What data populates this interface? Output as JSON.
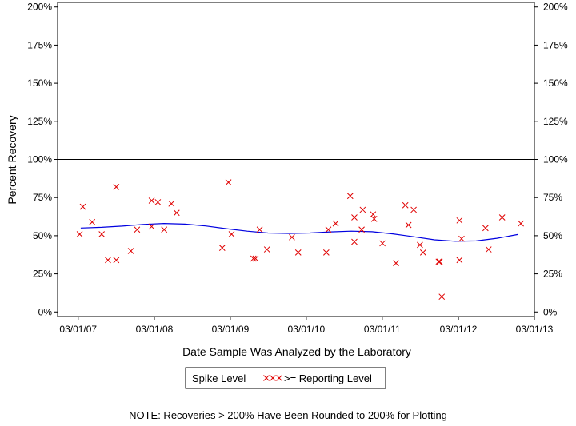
{
  "chart_data": {
    "type": "scatter",
    "xlabel": "Date Sample Was Analyzed by the Laboratory",
    "ylabel": "Percent Recovery",
    "note": "NOTE: Recoveries > 200% Have Been Rounded to 200% for Plotting",
    "x_ticks": [
      "03/01/07",
      "03/01/08",
      "03/01/09",
      "03/01/10",
      "03/01/11",
      "03/01/12",
      "03/01/13"
    ],
    "y_ticks": [
      "0%",
      "25%",
      "50%",
      "75%",
      "100%",
      "125%",
      "150%",
      "175%",
      "200%"
    ],
    "xlim": [
      "2006-11-22",
      "2013-03-01"
    ],
    "ylim": [
      -3,
      203
    ],
    "reference_line": 100,
    "legend": {
      "placement": "bottom-center",
      "items": [
        {
          "label": "Spike Level",
          "symbol": "none"
        },
        {
          "label": ">= Reporting Level",
          "symbol": "xxx"
        }
      ]
    },
    "colors": {
      "points": "#e00000",
      "trend": "#0000e0",
      "reference": "#000000"
    },
    "series": [
      {
        "name": ">= Reporting Level",
        "points": [
          {
            "x": "2007-03-08",
            "y": 51
          },
          {
            "x": "2007-03-23",
            "y": 69
          },
          {
            "x": "2007-05-07",
            "y": 59
          },
          {
            "x": "2007-06-22",
            "y": 51
          },
          {
            "x": "2007-07-22",
            "y": 34
          },
          {
            "x": "2007-08-31",
            "y": 82
          },
          {
            "x": "2007-08-31",
            "y": 34
          },
          {
            "x": "2007-11-09",
            "y": 40
          },
          {
            "x": "2007-12-09",
            "y": 54
          },
          {
            "x": "2008-02-17",
            "y": 56
          },
          {
            "x": "2008-02-17",
            "y": 73
          },
          {
            "x": "2008-03-18",
            "y": 72
          },
          {
            "x": "2008-04-17",
            "y": 54
          },
          {
            "x": "2008-05-22",
            "y": 71
          },
          {
            "x": "2008-06-16",
            "y": 65
          },
          {
            "x": "2009-01-21",
            "y": 42
          },
          {
            "x": "2009-02-20",
            "y": 85
          },
          {
            "x": "2009-03-07",
            "y": 51
          },
          {
            "x": "2009-06-20",
            "y": 35
          },
          {
            "x": "2009-06-30",
            "y": 35
          },
          {
            "x": "2009-07-20",
            "y": 54
          },
          {
            "x": "2009-08-24",
            "y": 41
          },
          {
            "x": "2009-12-22",
            "y": 49
          },
          {
            "x": "2010-01-21",
            "y": 39
          },
          {
            "x": "2010-06-05",
            "y": 39
          },
          {
            "x": "2010-06-15",
            "y": 54
          },
          {
            "x": "2010-07-20",
            "y": 58
          },
          {
            "x": "2010-09-28",
            "y": 76
          },
          {
            "x": "2010-10-18",
            "y": 46
          },
          {
            "x": "2010-10-18",
            "y": 62
          },
          {
            "x": "2010-11-22",
            "y": 54
          },
          {
            "x": "2010-11-27",
            "y": 67
          },
          {
            "x": "2011-01-16",
            "y": 64
          },
          {
            "x": "2011-01-21",
            "y": 61
          },
          {
            "x": "2011-03-02",
            "y": 45
          },
          {
            "x": "2011-05-06",
            "y": 32
          },
          {
            "x": "2011-06-20",
            "y": 70
          },
          {
            "x": "2011-07-05",
            "y": 57
          },
          {
            "x": "2011-07-30",
            "y": 67
          },
          {
            "x": "2011-08-29",
            "y": 44
          },
          {
            "x": "2011-09-13",
            "y": 39
          },
          {
            "x": "2011-11-27",
            "y": 33
          },
          {
            "x": "2011-12-02",
            "y": 33
          },
          {
            "x": "2011-12-12",
            "y": 10
          },
          {
            "x": "2012-03-06",
            "y": 60
          },
          {
            "x": "2012-03-06",
            "y": 34
          },
          {
            "x": "2012-03-16",
            "y": 48
          },
          {
            "x": "2012-07-09",
            "y": 55
          },
          {
            "x": "2012-07-24",
            "y": 41
          },
          {
            "x": "2012-09-27",
            "y": 62
          },
          {
            "x": "2012-12-26",
            "y": 58
          }
        ]
      },
      {
        "name": "trend",
        "line": [
          {
            "x": "2007-03-13",
            "y": 55
          },
          {
            "x": "2007-06-21",
            "y": 55.5
          },
          {
            "x": "2007-09-29",
            "y": 56.3
          },
          {
            "x": "2008-01-07",
            "y": 57.4
          },
          {
            "x": "2008-04-16",
            "y": 58
          },
          {
            "x": "2008-07-25",
            "y": 57.6
          },
          {
            "x": "2008-11-02",
            "y": 56.4
          },
          {
            "x": "2009-02-10",
            "y": 54.6
          },
          {
            "x": "2009-05-21",
            "y": 53
          },
          {
            "x": "2009-08-29",
            "y": 51.8
          },
          {
            "x": "2009-12-07",
            "y": 51.5
          },
          {
            "x": "2010-03-17",
            "y": 51.8
          },
          {
            "x": "2010-06-25",
            "y": 52.5
          },
          {
            "x": "2010-10-03",
            "y": 53
          },
          {
            "x": "2011-01-11",
            "y": 52.6
          },
          {
            "x": "2011-04-21",
            "y": 51.2
          },
          {
            "x": "2011-07-30",
            "y": 49.3
          },
          {
            "x": "2011-11-07",
            "y": 47.3
          },
          {
            "x": "2012-02-15",
            "y": 46.4
          },
          {
            "x": "2012-05-25",
            "y": 46.6
          },
          {
            "x": "2012-09-02",
            "y": 48.3
          },
          {
            "x": "2012-12-11",
            "y": 50.8
          }
        ]
      }
    ]
  }
}
